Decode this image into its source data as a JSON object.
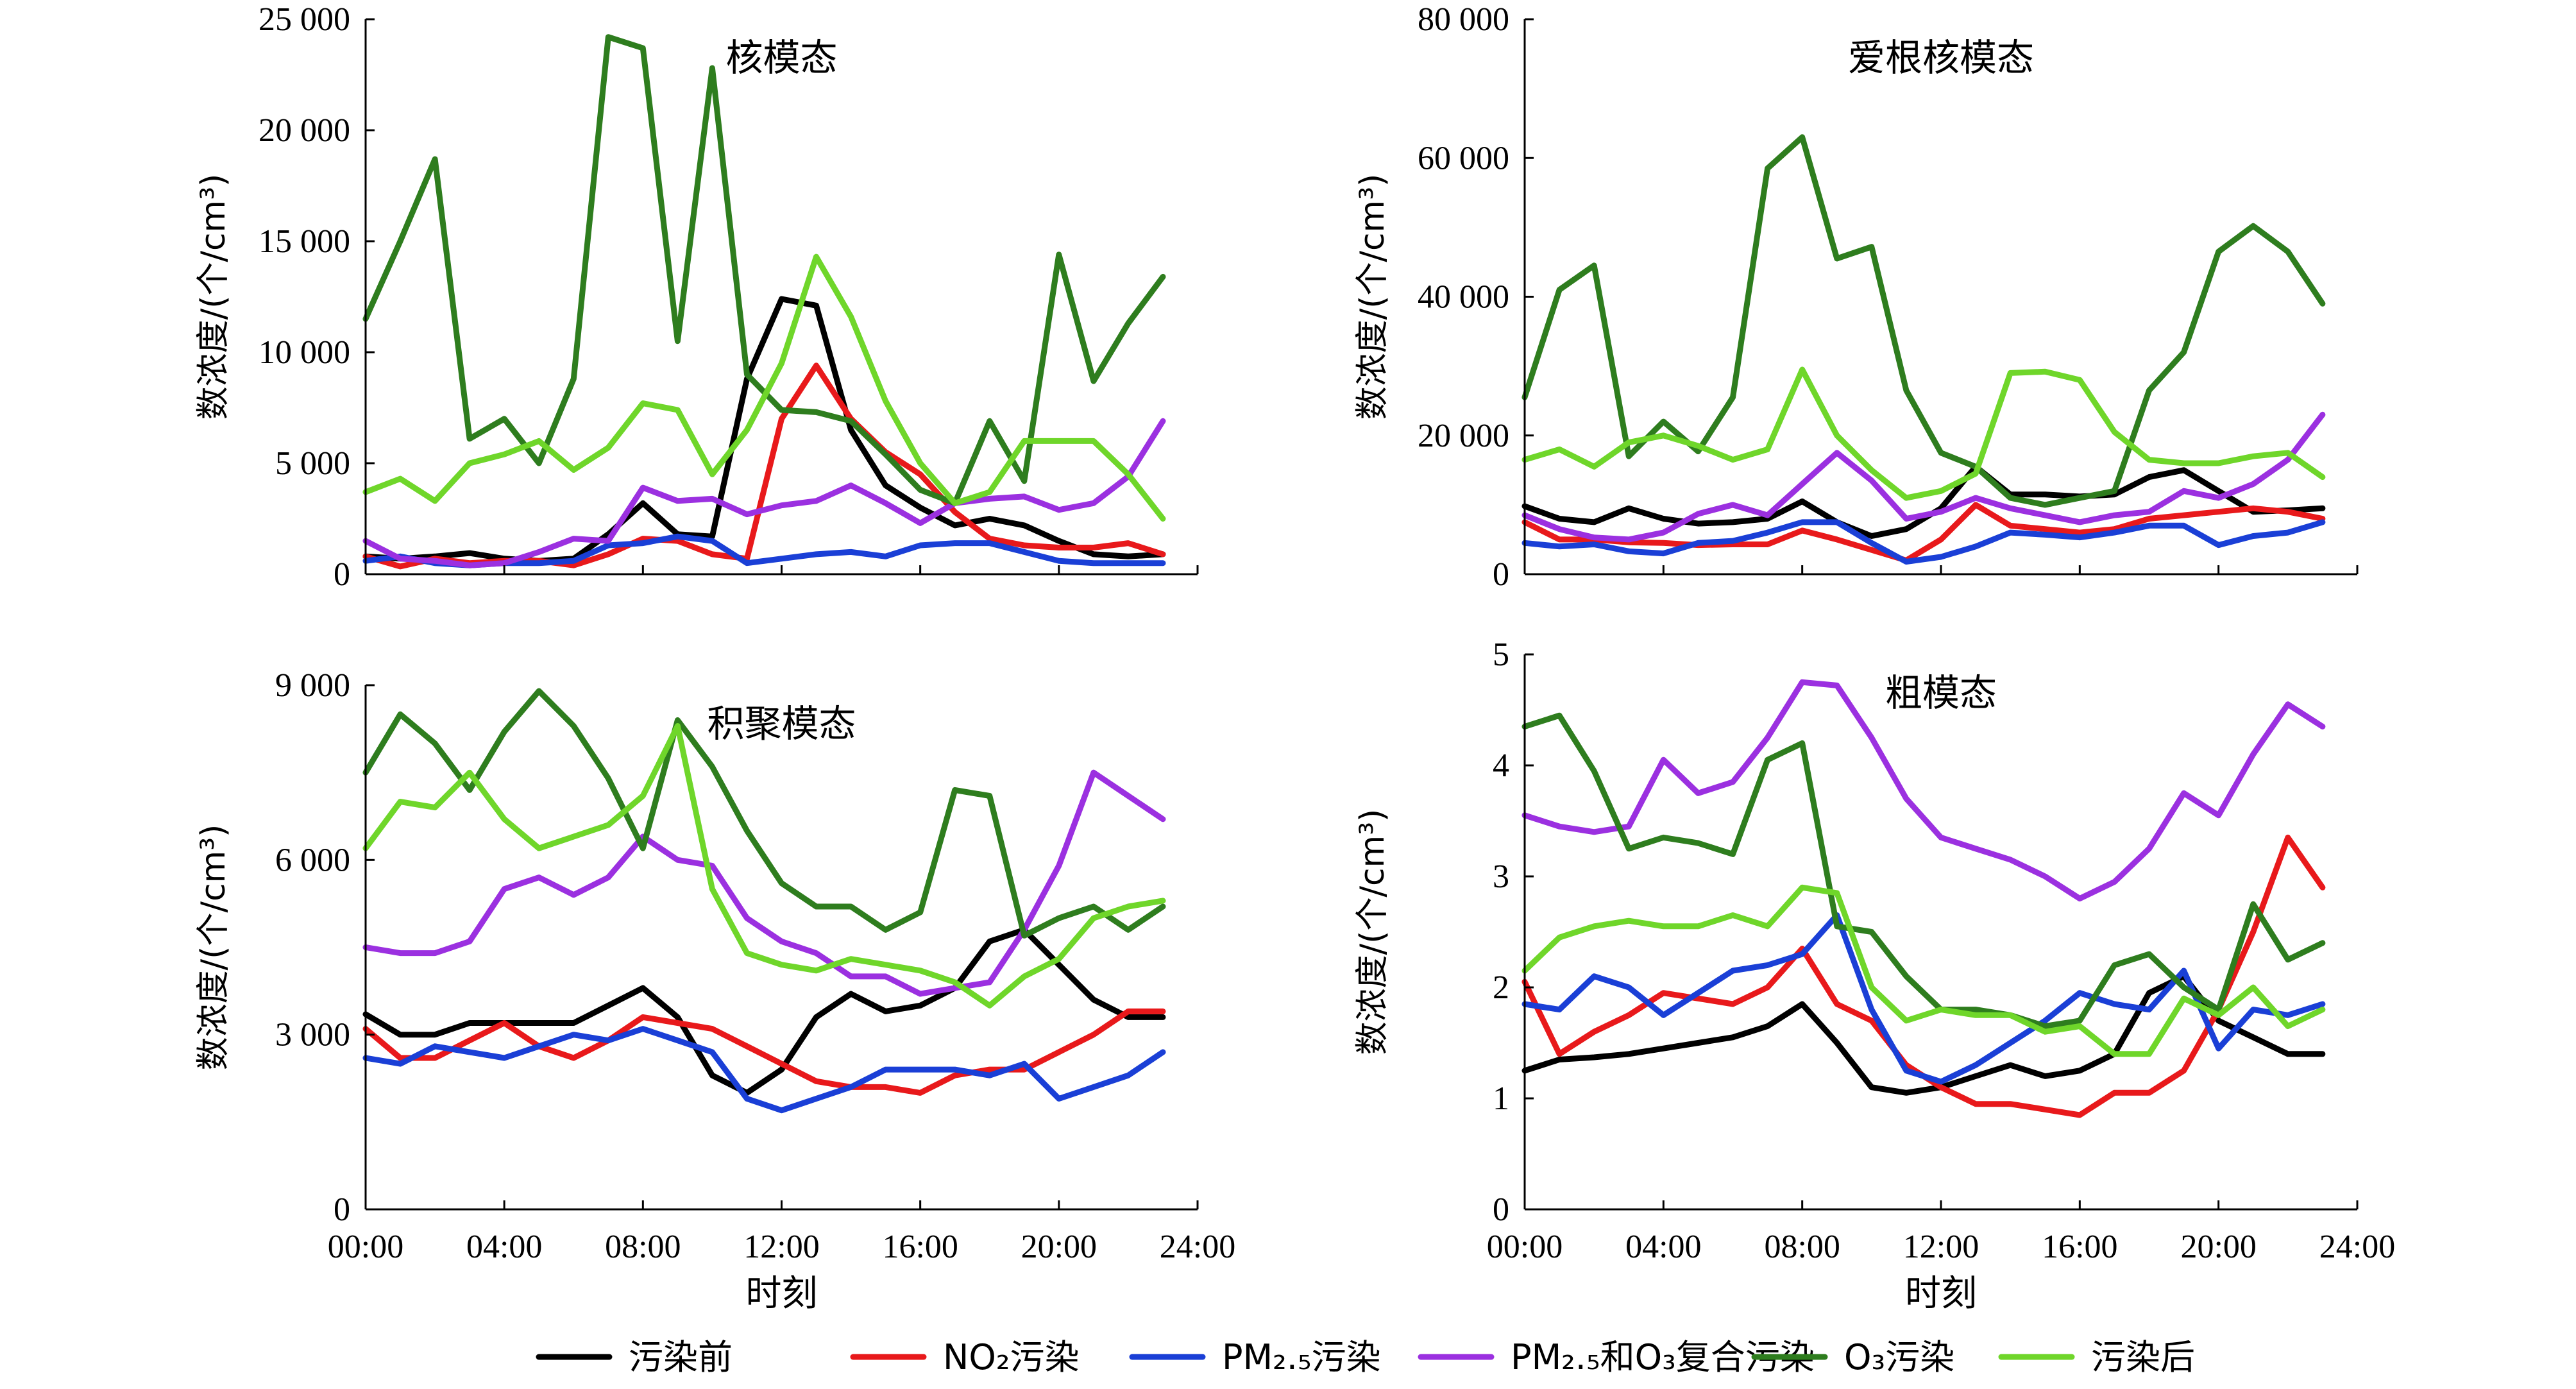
{
  "legend": [
    {
      "key": "pre",
      "label": "污染前",
      "color": "#000000"
    },
    {
      "key": "no2",
      "label": "NO₂污染",
      "color": "#e8191b"
    },
    {
      "key": "pm25",
      "label": "PM₂.₅污染",
      "color": "#1a3fd6"
    },
    {
      "key": "combo",
      "label": "PM₂.₅和O₃复合污染",
      "color": "#9b30e0"
    },
    {
      "key": "o3",
      "label": "O₃污染",
      "color": "#2e7d1e"
    },
    {
      "key": "post",
      "label": "污染后",
      "color": "#6fd62a"
    }
  ],
  "chart_data": [
    {
      "type": "line",
      "title": "核模态",
      "xlabel": "",
      "ylabel": "数浓度/(个/cm³)",
      "x": [
        0,
        1,
        2,
        3,
        4,
        5,
        6,
        7,
        8,
        9,
        10,
        11,
        12,
        13,
        14,
        15,
        16,
        17,
        18,
        19,
        20,
        21,
        22,
        23
      ],
      "xlim": [
        0,
        24
      ],
      "xticks": [
        "00:00",
        "04:00",
        "08:00",
        "12:00",
        "16:00",
        "20:00",
        "24:00"
      ],
      "ylim": [
        0,
        25000
      ],
      "yticks": [
        0,
        5000,
        10000,
        15000,
        20000,
        25000
      ],
      "ytick_labels": [
        "0",
        "5 000",
        "10 000",
        "15 000",
        "20 000",
        "25 000"
      ],
      "series": [
        {
          "key": "pre",
          "values": [
            800,
            700,
            800,
            950,
            700,
            600,
            700,
            1800,
            3200,
            1800,
            1700,
            8800,
            12400,
            12100,
            6500,
            4000,
            3000,
            2200,
            2500,
            2200,
            1500,
            900,
            800,
            900
          ]
        },
        {
          "key": "no2",
          "values": [
            800,
            350,
            700,
            500,
            600,
            600,
            400,
            900,
            1600,
            1500,
            900,
            700,
            7000,
            9400,
            7000,
            5500,
            4500,
            2800,
            1600,
            1300,
            1200,
            1200,
            1400,
            900
          ]
        },
        {
          "key": "pm25",
          "values": [
            600,
            800,
            500,
            400,
            500,
            500,
            600,
            1300,
            1400,
            1700,
            1500,
            500,
            700,
            900,
            1000,
            800,
            1300,
            1400,
            1400,
            1000,
            600,
            500,
            500,
            500
          ]
        },
        {
          "key": "combo",
          "values": [
            1500,
            700,
            600,
            400,
            500,
            1000,
            1600,
            1500,
            3900,
            3300,
            3400,
            2700,
            3100,
            3300,
            4000,
            3200,
            2300,
            3200,
            3400,
            3500,
            2900,
            3200,
            4400,
            6900
          ]
        },
        {
          "key": "o3",
          "values": [
            11500,
            15000,
            18700,
            6100,
            7000,
            5000,
            8800,
            24200,
            23700,
            10500,
            22800,
            9000,
            7400,
            7300,
            6900,
            5400,
            3800,
            3200,
            6900,
            4200,
            14400,
            8700,
            11300,
            13400
          ]
        },
        {
          "key": "post",
          "values": [
            3700,
            4300,
            3300,
            5000,
            5400,
            6000,
            4700,
            5700,
            7700,
            7400,
            4500,
            6500,
            9500,
            14300,
            11600,
            7800,
            5000,
            3200,
            3700,
            6000,
            6000,
            6000,
            4500,
            2500
          ]
        }
      ]
    },
    {
      "type": "line",
      "title": "爱根核模态",
      "xlabel": "",
      "ylabel": "数浓度/(个/cm³)",
      "x": [
        0,
        1,
        2,
        3,
        4,
        5,
        6,
        7,
        8,
        9,
        10,
        11,
        12,
        13,
        14,
        15,
        16,
        17,
        18,
        19,
        20,
        21,
        22,
        23
      ],
      "xlim": [
        0,
        24
      ],
      "xticks": [
        "00:00",
        "04:00",
        "08:00",
        "12:00",
        "16:00",
        "20:00",
        "24:00"
      ],
      "ylim": [
        0,
        80000
      ],
      "yticks": [
        0,
        20000,
        40000,
        60000,
        80000
      ],
      "ytick_labels": [
        "0",
        "20 000",
        "40 000",
        "60 000",
        "80 000"
      ],
      "series": [
        {
          "key": "pre",
          "values": [
            9800,
            8000,
            7500,
            9500,
            8000,
            7300,
            7500,
            8000,
            10500,
            7500,
            5500,
            6500,
            9500,
            15500,
            11500,
            11500,
            11200,
            11500,
            14000,
            15000,
            12000,
            9000,
            9200,
            9500
          ]
        },
        {
          "key": "no2",
          "values": [
            7500,
            5000,
            5000,
            4600,
            4500,
            4200,
            4300,
            4300,
            6300,
            5000,
            3500,
            2000,
            5000,
            10000,
            7000,
            6500,
            6000,
            6500,
            8000,
            8500,
            9000,
            9500,
            9000,
            8000
          ]
        },
        {
          "key": "pm25",
          "values": [
            4500,
            4000,
            4300,
            3300,
            3000,
            4500,
            4800,
            6000,
            7500,
            7500,
            4500,
            1800,
            2500,
            4000,
            6000,
            5700,
            5300,
            6000,
            7000,
            7000,
            4200,
            5500,
            6000,
            7500
          ]
        },
        {
          "key": "combo",
          "values": [
            8500,
            6500,
            5300,
            5000,
            6000,
            8700,
            10000,
            8500,
            13000,
            17500,
            13500,
            8000,
            9000,
            11000,
            9500,
            8500,
            7500,
            8500,
            9000,
            12000,
            11000,
            13000,
            16500,
            23000
          ]
        },
        {
          "key": "o3",
          "values": [
            25500,
            41000,
            44500,
            17000,
            22000,
            17700,
            25500,
            58500,
            63000,
            45500,
            47200,
            26500,
            17500,
            15500,
            11000,
            10000,
            11000,
            12000,
            26500,
            32000,
            46500,
            50200,
            46500,
            39000
          ]
        },
        {
          "key": "post",
          "values": [
            16500,
            18000,
            15500,
            19000,
            20000,
            18500,
            16500,
            18000,
            29500,
            20000,
            15000,
            11000,
            12000,
            14500,
            29000,
            29200,
            28000,
            20500,
            16500,
            16000,
            16000,
            17000,
            17500,
            14000
          ]
        }
      ]
    },
    {
      "type": "line",
      "title": "积聚模态",
      "xlabel": "时刻",
      "ylabel": "数浓度/(个/cm³)",
      "x": [
        0,
        1,
        2,
        3,
        4,
        5,
        6,
        7,
        8,
        9,
        10,
        11,
        12,
        13,
        14,
        15,
        16,
        17,
        18,
        19,
        20,
        21,
        22,
        23
      ],
      "xlim": [
        0,
        24
      ],
      "xticks": [
        "00:00",
        "04:00",
        "08:00",
        "12:00",
        "16:00",
        "20:00",
        "24:00"
      ],
      "ylim": [
        0,
        9000
      ],
      "yticks": [
        0,
        3000,
        6000,
        9000
      ],
      "ytick_labels": [
        "0",
        "3 000",
        "6 000",
        "9 000"
      ],
      "series": [
        {
          "key": "pre",
          "values": [
            3350,
            3000,
            3000,
            3200,
            3200,
            3200,
            3200,
            3500,
            3800,
            3300,
            2300,
            2000,
            2400,
            3300,
            3700,
            3400,
            3500,
            3800,
            4600,
            4800,
            4200,
            3600,
            3300,
            3300
          ]
        },
        {
          "key": "no2",
          "values": [
            3100,
            2600,
            2600,
            2900,
            3200,
            2800,
            2600,
            2900,
            3300,
            3200,
            3100,
            2800,
            2500,
            2200,
            2100,
            2100,
            2000,
            2300,
            2400,
            2400,
            2700,
            3000,
            3400,
            3400
          ]
        },
        {
          "key": "pm25",
          "values": [
            2600,
            2500,
            2800,
            2700,
            2600,
            2800,
            3000,
            2900,
            3100,
            2900,
            2700,
            1900,
            1700,
            1900,
            2100,
            2400,
            2400,
            2400,
            2300,
            2500,
            1900,
            2100,
            2300,
            2700
          ]
        },
        {
          "key": "combo",
          "values": [
            4500,
            4400,
            4400,
            4600,
            5500,
            5700,
            5400,
            5700,
            6400,
            6000,
            5900,
            5000,
            4600,
            4400,
            4000,
            4000,
            3700,
            3800,
            3900,
            4800,
            5900,
            7500,
            7100,
            6700
          ]
        },
        {
          "key": "o3",
          "values": [
            7500,
            8500,
            8000,
            7200,
            8200,
            8900,
            8300,
            7400,
            6200,
            8400,
            7600,
            6500,
            5600,
            5200,
            5200,
            4800,
            5100,
            7200,
            7100,
            4700,
            5000,
            5200,
            4800,
            5200
          ]
        },
        {
          "key": "post",
          "values": [
            6200,
            7000,
            6900,
            7500,
            6700,
            6200,
            6400,
            6600,
            7100,
            8300,
            5500,
            4400,
            4200,
            4100,
            4300,
            4200,
            4100,
            3900,
            3500,
            4000,
            4300,
            5000,
            5200,
            5300
          ]
        }
      ]
    },
    {
      "type": "line",
      "title": "粗模态",
      "xlabel": "时刻",
      "ylabel": "数浓度/(个/cm³)",
      "x": [
        0,
        1,
        2,
        3,
        4,
        5,
        6,
        7,
        8,
        9,
        10,
        11,
        12,
        13,
        14,
        15,
        16,
        17,
        18,
        19,
        20,
        21,
        22,
        23
      ],
      "xlim": [
        0,
        24
      ],
      "xticks": [
        "00:00",
        "04:00",
        "08:00",
        "12:00",
        "16:00",
        "20:00",
        "24:00"
      ],
      "ylim": [
        0,
        5
      ],
      "yticks": [
        0,
        1,
        2,
        3,
        4,
        5
      ],
      "ytick_labels": [
        "0",
        "1",
        "2",
        "3",
        "4",
        "5"
      ],
      "series": [
        {
          "key": "pre",
          "values": [
            1.25,
            1.35,
            1.37,
            1.4,
            1.45,
            1.5,
            1.55,
            1.65,
            1.85,
            1.5,
            1.1,
            1.05,
            1.1,
            1.2,
            1.3,
            1.2,
            1.25,
            1.4,
            1.95,
            2.1,
            1.7,
            1.55,
            1.4,
            1.4
          ]
        },
        {
          "key": "no2",
          "values": [
            2.05,
            1.4,
            1.6,
            1.75,
            1.95,
            1.9,
            1.85,
            2.0,
            2.35,
            1.85,
            1.7,
            1.3,
            1.1,
            0.95,
            0.95,
            0.9,
            0.85,
            1.05,
            1.05,
            1.25,
            1.8,
            2.5,
            3.35,
            2.9
          ]
        },
        {
          "key": "pm25",
          "values": [
            1.85,
            1.8,
            2.1,
            2.0,
            1.75,
            1.95,
            2.15,
            2.2,
            2.3,
            2.65,
            1.8,
            1.25,
            1.15,
            1.3,
            1.5,
            1.7,
            1.95,
            1.85,
            1.8,
            2.15,
            1.45,
            1.8,
            1.75,
            1.85
          ]
        },
        {
          "key": "combo",
          "values": [
            3.55,
            3.45,
            3.4,
            3.45,
            4.05,
            3.75,
            3.85,
            4.25,
            4.75,
            4.72,
            4.25,
            3.7,
            3.35,
            3.25,
            3.15,
            3.0,
            2.8,
            2.95,
            3.25,
            3.75,
            3.55,
            4.1,
            4.55,
            4.35
          ]
        },
        {
          "key": "o3",
          "values": [
            4.35,
            4.45,
            3.95,
            3.25,
            3.35,
            3.3,
            3.2,
            4.05,
            4.2,
            2.55,
            2.5,
            2.1,
            1.8,
            1.8,
            1.75,
            1.65,
            1.7,
            2.2,
            2.3,
            2.0,
            1.8,
            2.75,
            2.25,
            2.4
          ]
        },
        {
          "key": "post",
          "values": [
            2.15,
            2.45,
            2.55,
            2.6,
            2.55,
            2.55,
            2.65,
            2.55,
            2.9,
            2.85,
            2.0,
            1.7,
            1.8,
            1.75,
            1.75,
            1.6,
            1.65,
            1.4,
            1.4,
            1.9,
            1.75,
            2.0,
            1.65,
            1.8
          ]
        }
      ]
    }
  ]
}
